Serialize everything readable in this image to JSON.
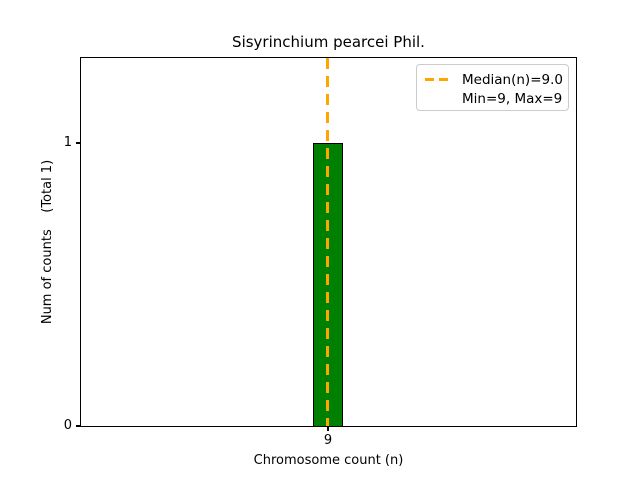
{
  "figure": {
    "title": "Sisyrinchium pearcei Phil.",
    "xlabel": "Chromosome count (n)",
    "ylabel": "Num of counts    (Total 1)"
  },
  "axes": {
    "x_ticks": [
      "9"
    ],
    "y_ticks": [
      "0",
      "1"
    ]
  },
  "legend": {
    "items": [
      {
        "label": "Median(n)=9.0",
        "marker": "orange-dashed-line"
      },
      {
        "label": "Min=9, Max=9",
        "marker": "none"
      }
    ]
  },
  "colors": {
    "bar_fill": "#008000",
    "bar_edge": "#000000",
    "median_line": "#FFA500",
    "axis": "#000000",
    "legend_border": "#cccccc",
    "background": "#ffffff"
  },
  "chart_data": {
    "type": "bar",
    "title": "Sisyrinchium pearcei Phil.",
    "xlabel": "Chromosome count (n)",
    "ylabel": "Num of counts (Total 1)",
    "categories": [
      9
    ],
    "values": [
      1
    ],
    "ylim": [
      0,
      1.3
    ],
    "xticks": [
      9
    ],
    "yticks": [
      0,
      1
    ],
    "grid": false,
    "legend_position": "upper right",
    "annotations": {
      "median_n": 9.0,
      "min_n": 9,
      "max_n": 9,
      "total_counts": 1
    },
    "series": [
      {
        "name": "counts",
        "x": [
          9
        ],
        "y": [
          1
        ],
        "color": "#008000"
      }
    ],
    "reference_lines": [
      {
        "orientation": "vertical",
        "x": 9.0,
        "style": "dashed",
        "color": "#FFA500",
        "label": "Median(n)=9.0"
      }
    ]
  }
}
